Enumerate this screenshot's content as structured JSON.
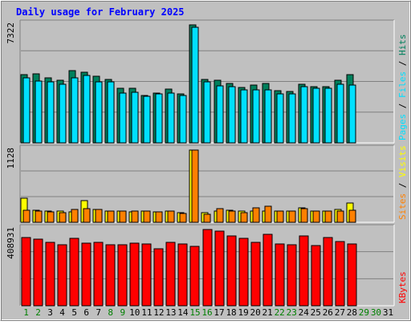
{
  "chart_data": {
    "type": "bar",
    "title": "Daily usage for February 2025",
    "days": [
      "1",
      "2",
      "3",
      "4",
      "5",
      "6",
      "7",
      "8",
      "9",
      "10",
      "11",
      "12",
      "13",
      "14",
      "15",
      "16",
      "17",
      "18",
      "19",
      "20",
      "21",
      "22",
      "23",
      "24",
      "25",
      "26",
      "27",
      "28",
      "29",
      "30",
      "31"
    ],
    "weekend_days": [
      "1",
      "2",
      "8",
      "9",
      "15",
      "16",
      "22",
      "23",
      "29",
      "30"
    ],
    "colors": {
      "hits": "#00805C",
      "files": "#00E0FF",
      "pages": "#00E0FF",
      "visits": "#FFFF00",
      "sites": "#FF8000",
      "kbytes": "#FF0000",
      "weekday_label": "#000000",
      "weekend_label": "#008000",
      "title": "#0000FF"
    },
    "panels": [
      {
        "id": "hits-files",
        "max_label": "7322",
        "ymax": 7322,
        "legend": [
          {
            "text": "Hits",
            "color": "#00805C"
          },
          {
            "text": "Files",
            "color": "#00E0FF"
          },
          {
            "text": "Pages",
            "color": "#00E0FF"
          }
        ],
        "legend_separator": " / ",
        "series": [
          {
            "name": "Hits",
            "color": "#00805C",
            "values": [
              4250,
              4280,
              4050,
              3900,
              4500,
              4380,
              4120,
              3950,
              3400,
              3400,
              2950,
              3100,
              3350,
              3050,
              7322,
              3950,
              3900,
              3700,
              3450,
              3580,
              3700,
              3250,
              3200,
              3650,
              3500,
              3500,
              3900,
              4220,
              null,
              null,
              null
            ]
          },
          {
            "name": "Files",
            "color": "#00E0FF",
            "values": [
              4050,
              3850,
              3800,
              3650,
              4050,
              4200,
              3800,
              3800,
              3100,
              3150,
              2900,
              3050,
              3100,
              2950,
              7150,
              3800,
              3550,
              3500,
              3300,
              3300,
              3300,
              3050,
              3050,
              3500,
              3400,
              3400,
              3650,
              3600,
              null,
              null,
              null
            ]
          }
        ]
      },
      {
        "id": "visits-sites",
        "max_label": "1128",
        "ymax": 1128,
        "legend": [
          {
            "text": "Visits",
            "color": "#FFFF00"
          },
          {
            "text": "Sites",
            "color": "#FF8000"
          }
        ],
        "legend_separator": " / ",
        "series": [
          {
            "name": "Visits",
            "color": "#FFFF00",
            "values": [
              380,
              190,
              180,
              170,
              160,
              340,
              200,
              170,
              180,
              160,
              180,
              160,
              170,
              150,
              1128,
              150,
              180,
              190,
              170,
              170,
              170,
              170,
              180,
              220,
              180,
              180,
              200,
              300,
              null,
              null,
              null
            ]
          },
          {
            "name": "Sites",
            "color": "#FF8000",
            "values": [
              190,
              180,
              160,
              150,
              200,
              210,
              200,
              170,
              180,
              170,
              170,
              160,
              170,
              140,
              1128,
              130,
              210,
              180,
              150,
              230,
              250,
              170,
              170,
              210,
              180,
              170,
              170,
              190,
              null,
              null,
              null
            ]
          }
        ]
      },
      {
        "id": "kbytes",
        "max_label": "408931",
        "ymax": 408931,
        "legend": [
          {
            "text": "KBytes",
            "color": "#FF0000"
          }
        ],
        "legend_separator": " / ",
        "series": [
          {
            "name": "KBytes",
            "color": "#FF0000",
            "values": [
              365000,
              358000,
              340000,
              325000,
              360000,
              335000,
              340000,
              325000,
              325000,
              335000,
              332000,
              305000,
              340000,
              332000,
              318000,
              408931,
              402000,
              375000,
              360000,
              340000,
              385000,
              330000,
              328000,
              375000,
              322000,
              365000,
              345000,
              332000,
              null,
              null,
              null
            ]
          }
        ]
      }
    ]
  }
}
